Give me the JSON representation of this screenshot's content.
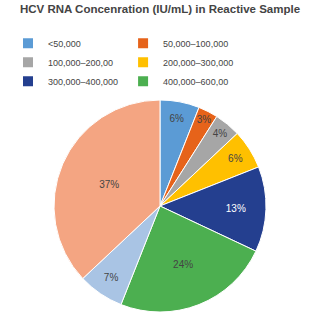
{
  "chart_data": {
    "type": "pie",
    "title": "HCV RNA Concenration (IU/mL) in Reactive Sample",
    "categories": [
      "<50,000",
      "50,000–100,000",
      "100,000–200,00",
      "200,000–300,000",
      "300,000–400,000",
      "400,000–600,00",
      null,
      null
    ],
    "values": [
      6,
      3,
      4,
      6,
      13,
      24,
      7,
      37
    ],
    "value_labels": [
      "6%",
      "3%",
      "4%",
      "6%",
      "13%",
      "24%",
      "7%",
      "37%"
    ],
    "colors": [
      "#5B9BD5",
      "#E6631A",
      "#A6A6A6",
      "#FFC000",
      "#243F8F",
      "#4CAF50",
      "#A9C4E4",
      "#F4A582"
    ],
    "data_labels": true,
    "legend": "top"
  }
}
